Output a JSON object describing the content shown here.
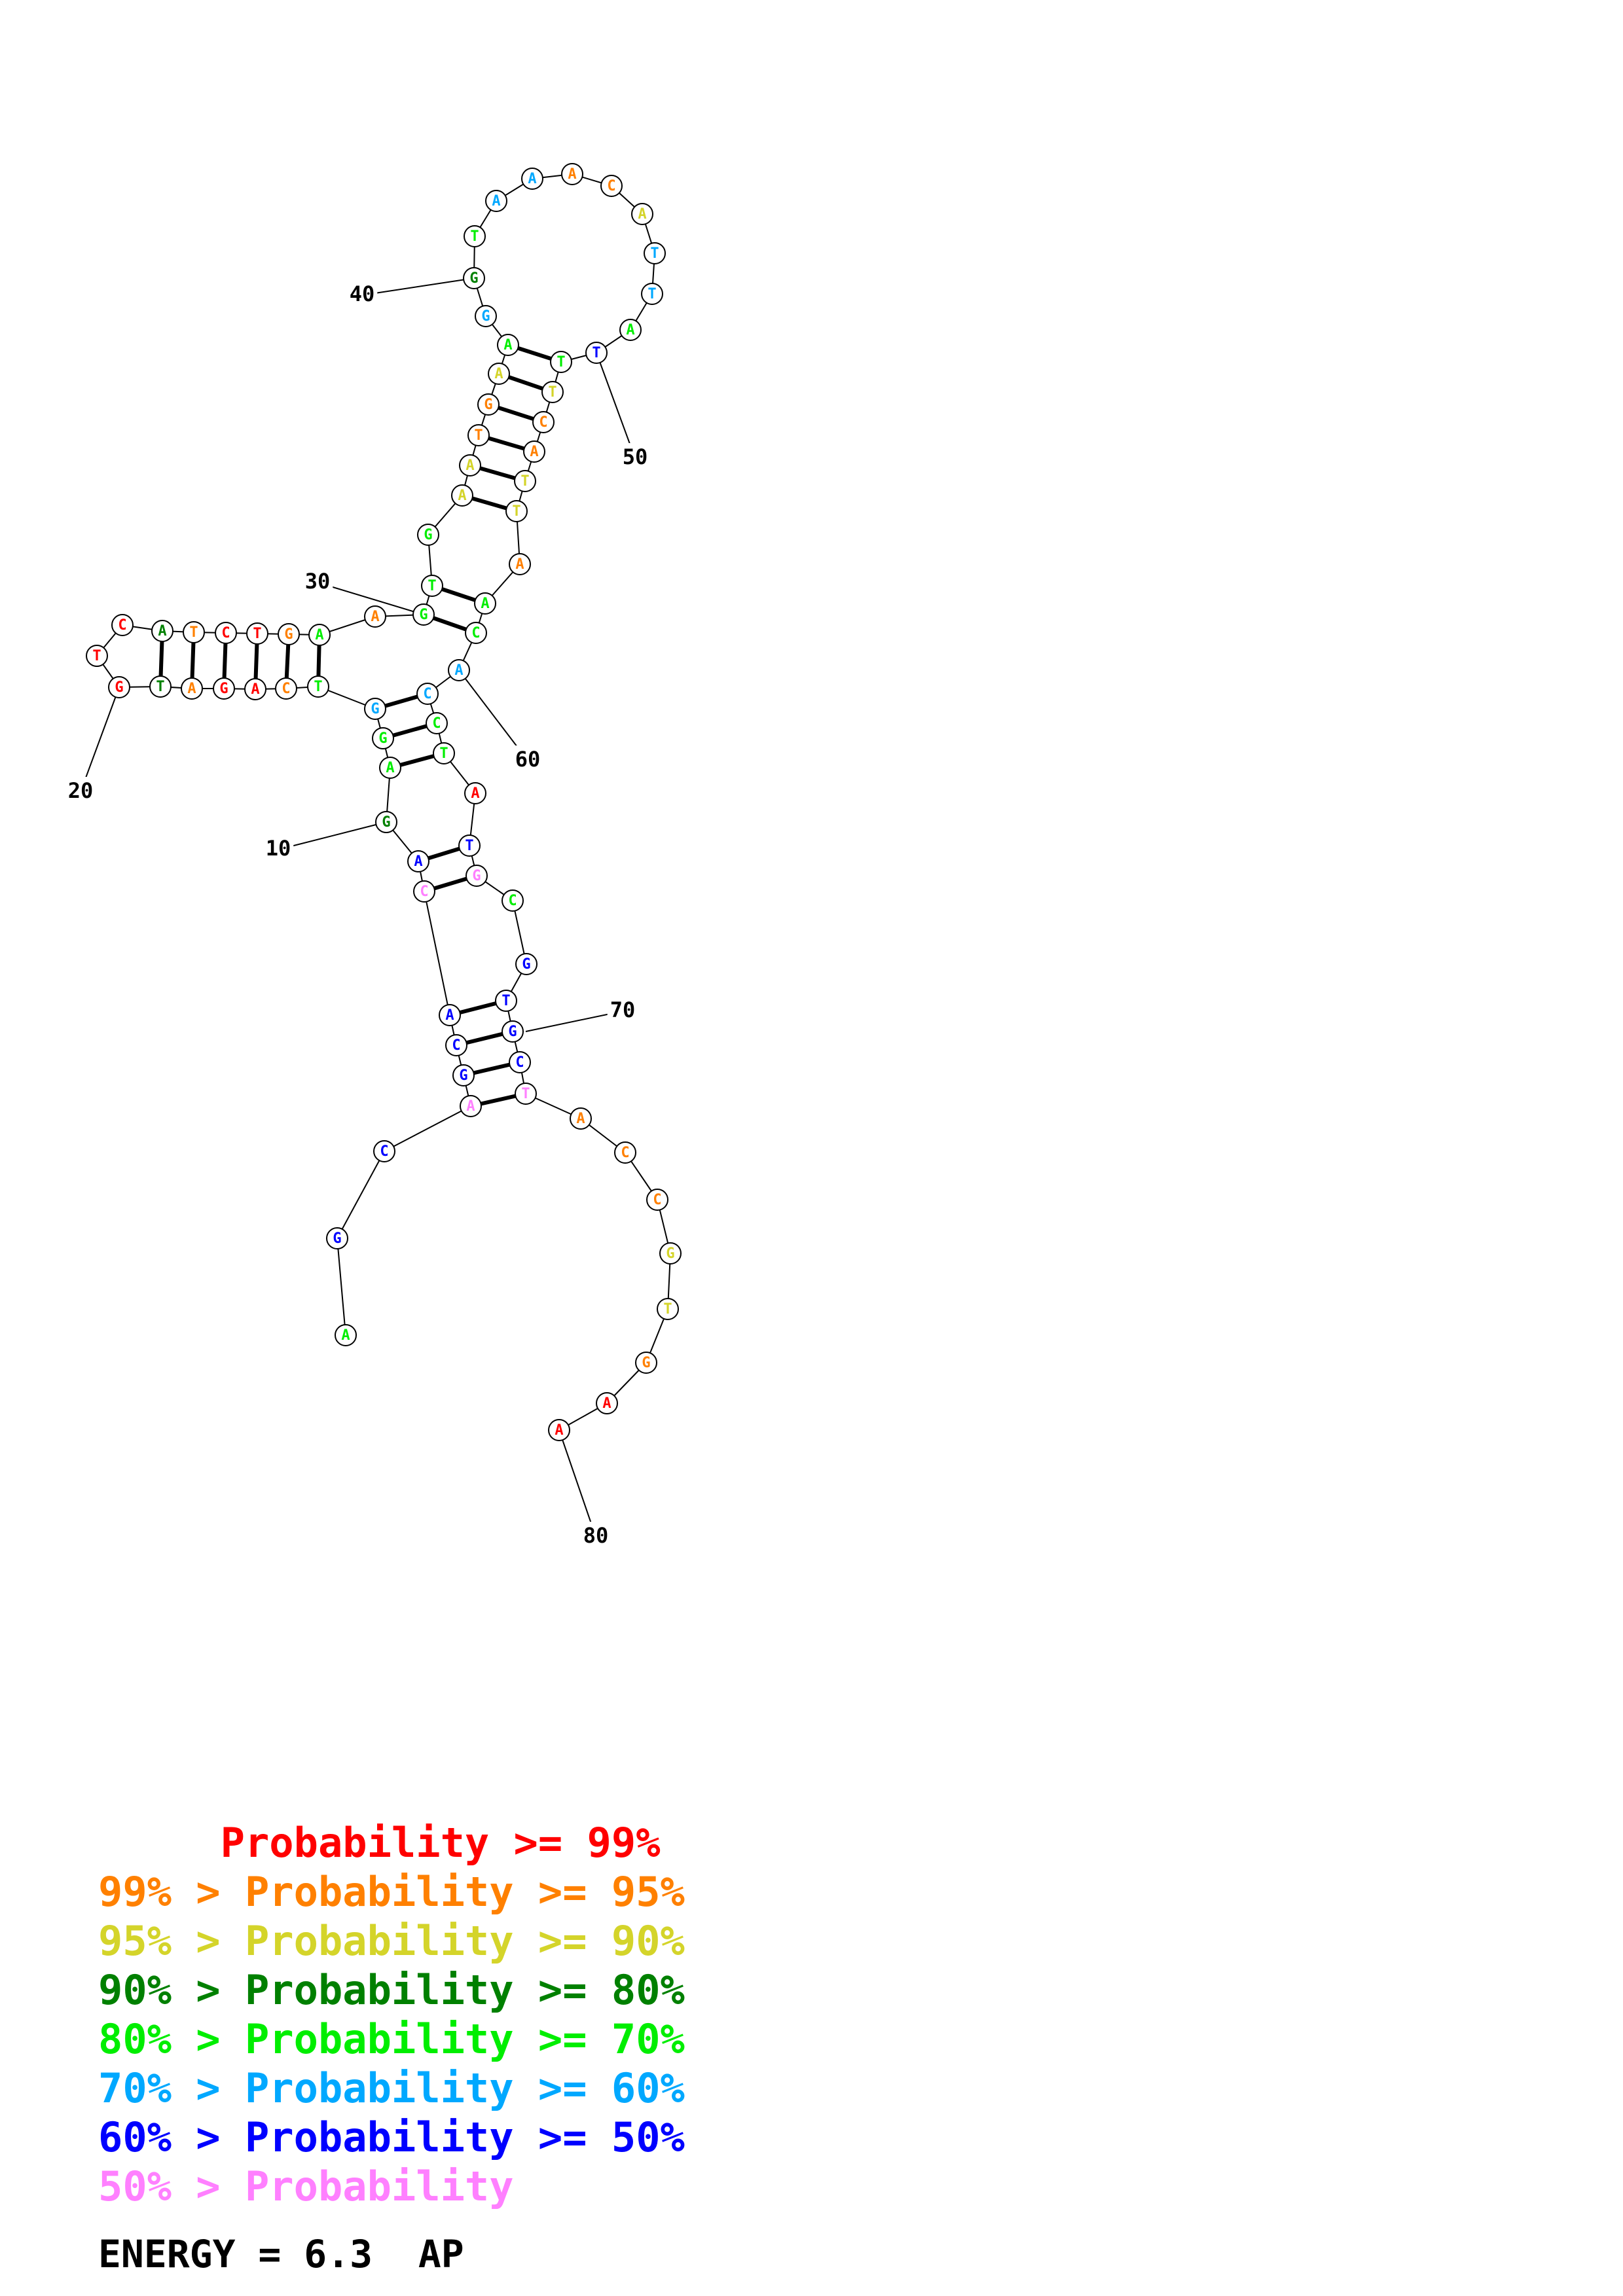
{
  "diagram": {
    "colors": {
      "p99": "#ff0000",
      "p95": "#ff8000",
      "p90": "#d4d42a",
      "p80": "#008000",
      "p70": "#00ee00",
      "p60": "#00a8ff",
      "p50": "#0000ff",
      "plow": "#ff80ff"
    },
    "bases": [
      {
        "n": 1,
        "b": "A",
        "c": "p70"
      },
      {
        "n": 2,
        "b": "G",
        "c": "p50"
      },
      {
        "n": 3,
        "b": "C",
        "c": "p50"
      },
      {
        "n": 4,
        "b": "A",
        "c": "plow"
      },
      {
        "n": 5,
        "b": "G",
        "c": "p50"
      },
      {
        "n": 6,
        "b": "C",
        "c": "p50"
      },
      {
        "n": 7,
        "b": "A",
        "c": "p50"
      },
      {
        "n": 8,
        "b": "C",
        "c": "plow"
      },
      {
        "n": 9,
        "b": "A",
        "c": "p50"
      },
      {
        "n": 10,
        "b": "G",
        "c": "p80"
      },
      {
        "n": 11,
        "b": "A",
        "c": "p70"
      },
      {
        "n": 12,
        "b": "G",
        "c": "p70"
      },
      {
        "n": 13,
        "b": "G",
        "c": "p60"
      },
      {
        "n": 14,
        "b": "T",
        "c": "p70"
      },
      {
        "n": 15,
        "b": "C",
        "c": "p95"
      },
      {
        "n": 16,
        "b": "A",
        "c": "p99"
      },
      {
        "n": 17,
        "b": "G",
        "c": "p99"
      },
      {
        "n": 18,
        "b": "A",
        "c": "p95"
      },
      {
        "n": 19,
        "b": "T",
        "c": "p80"
      },
      {
        "n": 20,
        "b": "G",
        "c": "p99"
      },
      {
        "n": 21,
        "b": "T",
        "c": "p99"
      },
      {
        "n": 22,
        "b": "C",
        "c": "p99"
      },
      {
        "n": 23,
        "b": "A",
        "c": "p80"
      },
      {
        "n": 24,
        "b": "T",
        "c": "p95"
      },
      {
        "n": 25,
        "b": "C",
        "c": "p99"
      },
      {
        "n": 26,
        "b": "T",
        "c": "p99"
      },
      {
        "n": 27,
        "b": "G",
        "c": "p95"
      },
      {
        "n": 28,
        "b": "A",
        "c": "p70"
      },
      {
        "n": 29,
        "b": "A",
        "c": "p95"
      },
      {
        "n": 30,
        "b": "G",
        "c": "p70"
      },
      {
        "n": 31,
        "b": "T",
        "c": "p70"
      },
      {
        "n": 32,
        "b": "G",
        "c": "p70"
      },
      {
        "n": 33,
        "b": "A",
        "c": "p90"
      },
      {
        "n": 34,
        "b": "A",
        "c": "p90"
      },
      {
        "n": 35,
        "b": "T",
        "c": "p95"
      },
      {
        "n": 36,
        "b": "G",
        "c": "p95"
      },
      {
        "n": 37,
        "b": "A",
        "c": "p90"
      },
      {
        "n": 38,
        "b": "A",
        "c": "p70"
      },
      {
        "n": 39,
        "b": "G",
        "c": "p60"
      },
      {
        "n": 40,
        "b": "G",
        "c": "p80"
      },
      {
        "n": 41,
        "b": "T",
        "c": "p70"
      },
      {
        "n": 42,
        "b": "A",
        "c": "p60"
      },
      {
        "n": 43,
        "b": "A",
        "c": "p60"
      },
      {
        "n": 44,
        "b": "A",
        "c": "p95"
      },
      {
        "n": 45,
        "b": "C",
        "c": "p95"
      },
      {
        "n": 46,
        "b": "A",
        "c": "p90"
      },
      {
        "n": 47,
        "b": "T",
        "c": "p60"
      },
      {
        "n": 48,
        "b": "T",
        "c": "p60"
      },
      {
        "n": 49,
        "b": "A",
        "c": "p70"
      },
      {
        "n": 50,
        "b": "T",
        "c": "p50"
      },
      {
        "n": 51,
        "b": "T",
        "c": "p70"
      },
      {
        "n": 52,
        "b": "T",
        "c": "p90"
      },
      {
        "n": 53,
        "b": "C",
        "c": "p95"
      },
      {
        "n": 54,
        "b": "A",
        "c": "p95"
      },
      {
        "n": 55,
        "b": "T",
        "c": "p90"
      },
      {
        "n": 56,
        "b": "T",
        "c": "p90"
      },
      {
        "n": 57,
        "b": "A",
        "c": "p95"
      },
      {
        "n": 58,
        "b": "A",
        "c": "p70"
      },
      {
        "n": 59,
        "b": "C",
        "c": "p70"
      },
      {
        "n": 60,
        "b": "A",
        "c": "p60"
      },
      {
        "n": 61,
        "b": "C",
        "c": "p60"
      },
      {
        "n": 62,
        "b": "C",
        "c": "p70"
      },
      {
        "n": 63,
        "b": "T",
        "c": "p70"
      },
      {
        "n": 64,
        "b": "A",
        "c": "p99"
      },
      {
        "n": 65,
        "b": "T",
        "c": "p50"
      },
      {
        "n": 66,
        "b": "G",
        "c": "plow"
      },
      {
        "n": 67,
        "b": "C",
        "c": "p70"
      },
      {
        "n": 68,
        "b": "G",
        "c": "p50"
      },
      {
        "n": 69,
        "b": "T",
        "c": "p50"
      },
      {
        "n": 70,
        "b": "G",
        "c": "p50"
      },
      {
        "n": 71,
        "b": "C",
        "c": "p50"
      },
      {
        "n": 72,
        "b": "T",
        "c": "plow"
      },
      {
        "n": 73,
        "b": "A",
        "c": "p95"
      },
      {
        "n": 74,
        "b": "C",
        "c": "p95"
      },
      {
        "n": 75,
        "b": "C",
        "c": "p95"
      },
      {
        "n": 76,
        "b": "G",
        "c": "p90"
      },
      {
        "n": 77,
        "b": "T",
        "c": "p90"
      },
      {
        "n": 78,
        "b": "G",
        "c": "p95"
      },
      {
        "n": 79,
        "b": "A",
        "c": "p99"
      },
      {
        "n": 80,
        "b": "A",
        "c": "p99"
      }
    ],
    "pairs": [
      [
        4,
        72
      ],
      [
        5,
        71
      ],
      [
        6,
        70
      ],
      [
        7,
        69
      ],
      [
        8,
        66
      ],
      [
        9,
        65
      ],
      [
        11,
        63
      ],
      [
        12,
        62
      ],
      [
        13,
        61
      ],
      [
        14,
        28
      ],
      [
        15,
        27
      ],
      [
        16,
        26
      ],
      [
        17,
        25
      ],
      [
        18,
        24
      ],
      [
        19,
        23
      ],
      [
        30,
        59
      ],
      [
        31,
        58
      ],
      [
        33,
        56
      ],
      [
        34,
        55
      ],
      [
        35,
        54
      ],
      [
        36,
        53
      ],
      [
        37,
        52
      ],
      [
        38,
        51
      ]
    ],
    "ticks": [
      "10",
      "20",
      "30",
      "40",
      "50",
      "60",
      "70",
      "80"
    ]
  },
  "legend": [
    {
      "text": "     Probability >= 99%",
      "color": "#ff0000"
    },
    {
      "text": "99% > Probability >= 95%",
      "color": "#ff8000"
    },
    {
      "text": "95% > Probability >= 90%",
      "color": "#d4d42a"
    },
    {
      "text": "90% > Probability >= 80%",
      "color": "#008000"
    },
    {
      "text": "80% > Probability >= 70%",
      "color": "#00ee00"
    },
    {
      "text": "70% > Probability >= 60%",
      "color": "#00a8ff"
    },
    {
      "text": "60% > Probability >= 50%",
      "color": "#0000ff"
    },
    {
      "text": "50% > Probability",
      "color": "#ff80ff"
    }
  ],
  "energy": "ENERGY = 6.3  AP"
}
